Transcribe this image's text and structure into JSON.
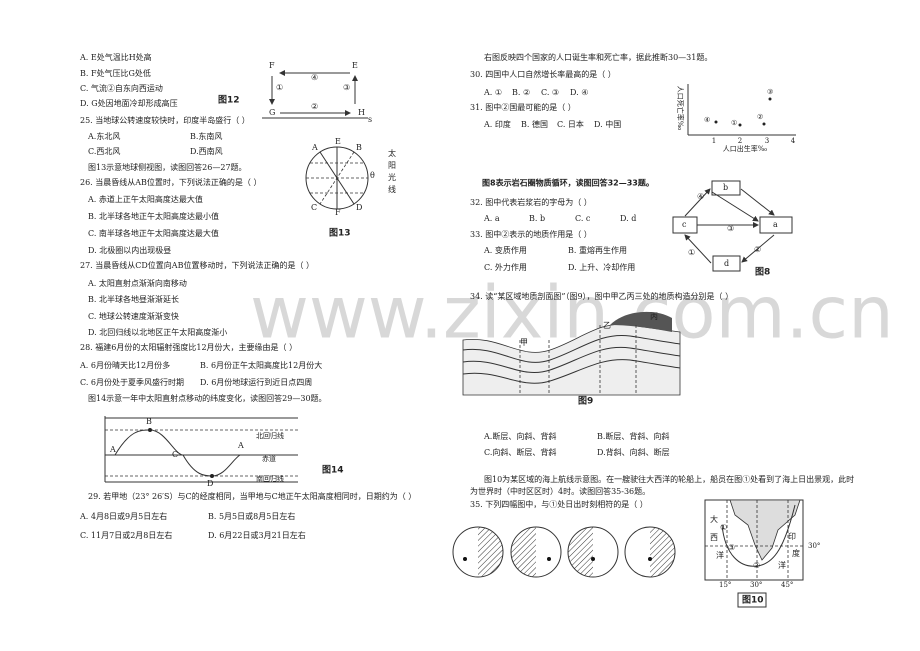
{
  "watermark": "www.zixin.com.cn",
  "q24": {
    "options": [
      "A. E处气温比H处高",
      "B. F处气压比G处低",
      "C. 气流②自东向西运动",
      "D. G处因地面冷却形成高压"
    ]
  },
  "fig12": {
    "caption": "图12",
    "labels": [
      "F",
      "E",
      "G",
      "H",
      "④",
      "①",
      "③",
      "②",
      "s"
    ]
  },
  "q25": {
    "stem": "25. 当地球公转速度较快时，印度半岛盛行（     ）",
    "options": [
      "A.东北风",
      "B.东南风",
      "C.西北风",
      "D.西南风"
    ]
  },
  "intro_26_27": "图13示意地球侧视图，读图回答26—27题。",
  "fig13": {
    "caption": "图13",
    "labels": [
      "E",
      "A",
      "B",
      "C",
      "F",
      "D",
      "θ"
    ],
    "sunlight": [
      "太",
      "阳",
      "光",
      "线"
    ]
  },
  "q26": {
    "stem": "26. 当晨昏线从AB位置时，下列说法正确的是（     ）",
    "options": [
      "A. 赤道上正午太阳高度达最大值",
      "B. 北半球各地正午太阳高度达最小值",
      "C. 南半球各地正午太阳高度达最大值",
      "D. 北极圈以内出现极昼"
    ]
  },
  "q27": {
    "stem": "27. 当晨昏线从CD位置向AB位置移动时，下列说法正确的是（     ）",
    "options": [
      "A. 太阳直射点渐渐向南移动",
      "B. 北半球各地昼渐渐延长",
      "C. 地球公转速度渐渐变快",
      "D. 北回归线以北地区正午太阳高度渐小"
    ]
  },
  "q28": {
    "stem": "28. 福建6月份的太阳辐射强度比12月份大，主要缘由是（     ）",
    "options": [
      "A. 6月份晴天比12月份多",
      "B. 6月份正午太阳高度比12月份大",
      "C. 6月份处于夏季风盛行时期",
      "D. 6月份地球运行到近日点四周"
    ]
  },
  "intro_29_30": "图14示意一年中太阳直射点移动的纬度变化，读图回答29—30题。",
  "fig14": {
    "caption": "图14",
    "lines": [
      "北回归线",
      "赤道",
      "南回归线"
    ],
    "points": [
      "A",
      "B",
      "C",
      "D",
      "A"
    ]
  },
  "q29": {
    "stem": "29. 若甲地（23° 26′S）与C的经度相同，当甲地与C地正午太阳高度相同时，日期约为（     ）",
    "options": [
      "A. 4月8日或9月5日左右",
      "B. 5月5日或8月5日左右",
      "C. 11月7日或2月8日左右",
      "D. 6月22日或3月21日左右"
    ]
  },
  "intro_30_31": "右图反映四个国家的人口诞生率和死亡率，据此推断30—31题。",
  "q30": {
    "stem": "30. 四国中人口自然增长率最高的是（     ）",
    "options": [
      "A. ①",
      "B. ②",
      "C. ③",
      "D. ④"
    ]
  },
  "q31": {
    "stem": "31. 图中②国最可能的是（     ）",
    "options": [
      "A. 印度",
      "B. 德国",
      "C. 日本",
      "D. 中国"
    ]
  },
  "chart": {
    "y_label": "人口死亡率‰",
    "x_label": "人口出生率‰",
    "xticks": [
      1,
      2,
      3,
      4
    ],
    "points": [
      "④",
      "①",
      "②",
      "③"
    ]
  },
  "intro_32_33": "图8表示岩石圈物质循环，读图回答32—33题。",
  "q32": {
    "stem": "32. 图中代表岩浆岩的字母为（     ）",
    "options": [
      "A. a",
      "B. b",
      "C. c",
      "D. d"
    ]
  },
  "q33": {
    "stem": "33. 图中②表示的地质作用是（     ）",
    "options": [
      "A. 变质作用",
      "B. 重熔再生作用",
      "C. 外力作用",
      "D. 上升、冷却作用"
    ]
  },
  "fig8": {
    "caption": "图8",
    "boxes": [
      "b",
      "a",
      "c",
      "d"
    ],
    "arrows": [
      "④",
      "③",
      "①",
      "②"
    ]
  },
  "q34": {
    "stem": "34. 读“某区域地质剖面图”（图9），图中甲乙丙三处的地质构造分别是（     ）",
    "options": [
      "A.断层、向斜、背斜",
      "B.断层、背斜、向斜",
      "C.向斜、断层、背斜",
      "D.背斜、向斜、断层"
    ]
  },
  "fig9": {
    "caption": "图9",
    "labels": [
      "甲",
      "乙",
      "丙"
    ]
  },
  "intro_35_36": [
    "图10为某区域的海上航线示意图。在一艘驶往大西洋的轮船上，船员在图①处看到了海上日出景观，此时",
    "为世界时（中时区区时）4时。读图回答35-36题。"
  ],
  "q35": {
    "stem": "35. 下列四幅图中，与①处日出时刻相符的是（     ）"
  },
  "fig10": {
    "caption": "图10",
    "labels": [
      "大",
      "西",
      "洋",
      "印",
      "度",
      "洋",
      "①",
      "②",
      "③"
    ],
    "lat": "30°",
    "lons": [
      "15°",
      "30°",
      "45°"
    ]
  }
}
